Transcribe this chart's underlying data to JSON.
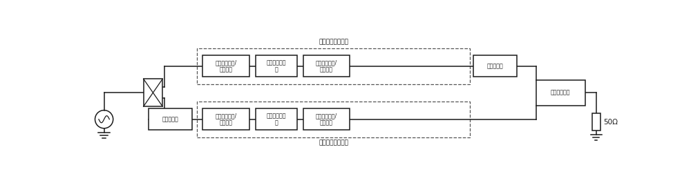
{
  "title_carrier": "载波功率放大模块",
  "title_peak": "峰值功率放大模块",
  "box_carrier_1": "载波输入匹配/\n偏置电路",
  "box_carrier_2": "载波功率放大\n器",
  "box_carrier_3": "载波输出匹配/\n偏置电路",
  "box_carrier_4": "阻抗变换线",
  "box_peak_0": "相位补偿线",
  "box_peak_1": "峰值输入匹配/\n偏置电路",
  "box_peak_2": "峰值功率放大\n器",
  "box_peak_3": "峰值输出匹配/\n偏置电路",
  "box_load": "负载调制网络",
  "label_50ohm": "50Ω",
  "bg_color": "#ffffff",
  "line_color": "#1a1a1a",
  "text_color": "#1a1a1a",
  "font_size": 7.0,
  "small_font_size": 6.5
}
